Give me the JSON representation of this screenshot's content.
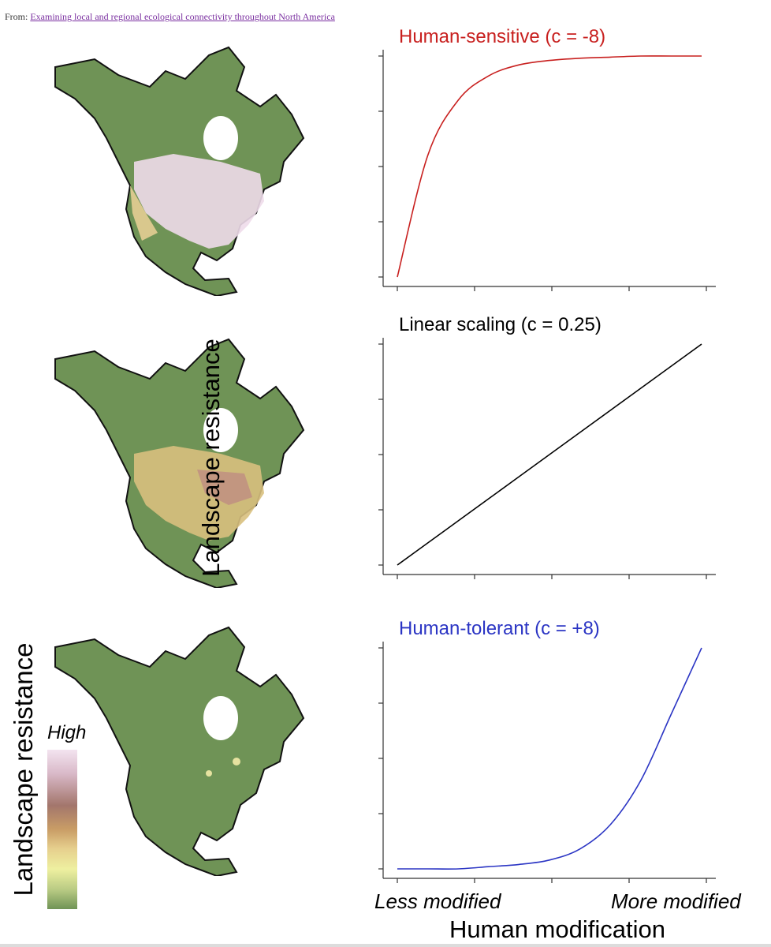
{
  "source": {
    "prefix": "From: ",
    "link_text": "Examining local and regional ecological connectivity throughout North America"
  },
  "y_axis_label": "Landscape resistance",
  "x_axis_title": "Human modification",
  "x_tick_labels": {
    "low": "Less modified",
    "high": "More modified"
  },
  "legend": {
    "title": "Landscape resistance",
    "high_label": "High"
  },
  "colors": {
    "sensitive": "#c8201f",
    "linear": "#000000",
    "tolerant": "#2b35c4",
    "land": "#6f9356",
    "link": "#7a2fa0"
  },
  "panels": [
    {
      "title": "Human-sensitive (c = -8)",
      "color": "#c8201f"
    },
    {
      "title": "Linear scaling (c = 0.25)",
      "color": "#000000"
    },
    {
      "title": "Human-tolerant (c = +8)",
      "color": "#2b35c4"
    }
  ],
  "chart_data": [
    {
      "type": "line",
      "title": "Human-sensitive (c = -8)",
      "xlabel": "Human modification",
      "ylabel": "Landscape resistance",
      "x": [
        0,
        0.1,
        0.2,
        0.3,
        0.4,
        0.5,
        0.6,
        0.7,
        0.8,
        0.9,
        1.0
      ],
      "series": [
        {
          "values": [
            0,
            0.55,
            0.8,
            0.91,
            0.96,
            0.98,
            0.99,
            0.995,
            1,
            1,
            1
          ]
        }
      ]
    },
    {
      "type": "line",
      "title": "Linear scaling (c = 0.25)",
      "xlabel": "Human modification",
      "ylabel": "Landscape resistance",
      "x": [
        0,
        0.1,
        0.2,
        0.3,
        0.4,
        0.5,
        0.6,
        0.7,
        0.8,
        0.9,
        1.0
      ],
      "series": [
        {
          "values": [
            0,
            0.1,
            0.2,
            0.3,
            0.4,
            0.5,
            0.6,
            0.7,
            0.8,
            0.9,
            1.0
          ]
        }
      ]
    },
    {
      "type": "line",
      "title": "Human-tolerant (c = +8)",
      "xlabel": "Human modification",
      "ylabel": "Landscape resistance",
      "x": [
        0,
        0.1,
        0.2,
        0.3,
        0.4,
        0.5,
        0.6,
        0.7,
        0.8,
        0.9,
        1.0
      ],
      "series": [
        {
          "values": [
            0,
            0,
            0,
            0.01,
            0.02,
            0.04,
            0.09,
            0.2,
            0.4,
            0.7,
            1.0
          ]
        }
      ]
    }
  ]
}
